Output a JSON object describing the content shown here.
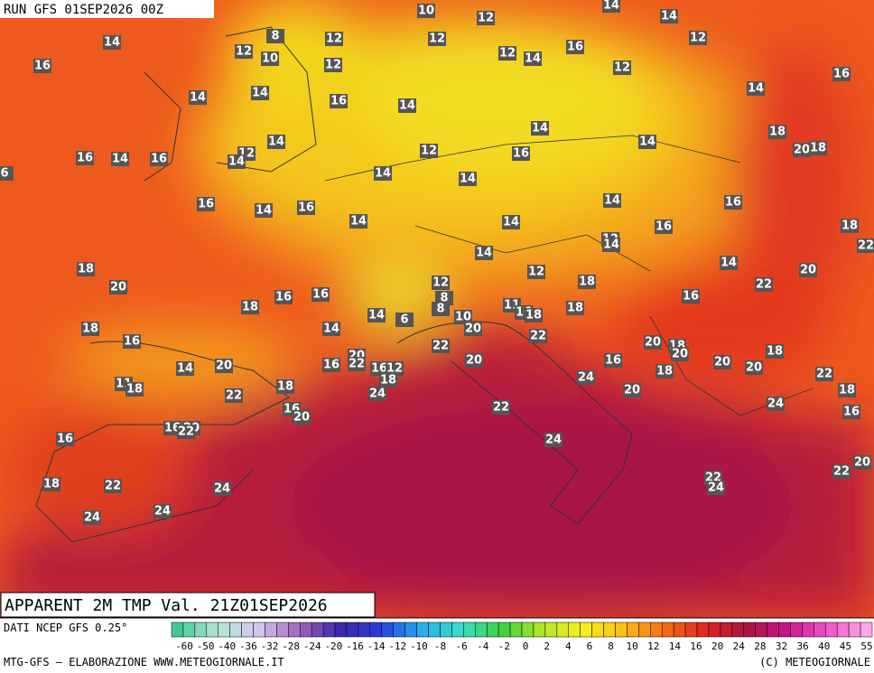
{
  "header": {
    "run": "RUN GFS 01SEP2026 00Z",
    "title": "APPARENT 2M TMP Val. 21Z01SEP2026"
  },
  "footer": {
    "source": "DATI NCEP GFS 0.25°",
    "credit": "MTG-GFS — ELABORAZIONE WWW.METEOGIORNALE.IT",
    "copyright": "(C) METEOGIORNALE"
  },
  "colorbar": {
    "labels": [
      -60,
      -50,
      -40,
      -36,
      -32,
      -28,
      -24,
      -20,
      -16,
      -14,
      -12,
      -10,
      -8,
      -6,
      -4,
      -2,
      0,
      2,
      4,
      6,
      8,
      10,
      12,
      14,
      16,
      20,
      24,
      28,
      32,
      36,
      40,
      45,
      55
    ]
  },
  "map": {
    "labels": [
      10,
      12,
      14,
      14,
      14,
      8,
      12,
      12,
      12,
      12,
      10,
      12,
      12,
      14,
      16,
      12,
      16,
      16,
      14,
      14,
      16,
      14,
      14,
      14,
      18,
      20,
      18,
      14,
      12,
      14,
      12,
      16,
      14,
      16,
      14,
      16,
      6,
      14,
      14,
      16,
      14,
      16,
      14,
      14,
      16,
      14,
      16,
      18,
      22,
      12,
      14,
      14,
      18,
      20,
      12,
      18,
      14,
      20,
      12,
      8,
      8,
      16,
      16,
      18,
      22,
      16,
      18,
      11,
      16,
      18,
      6,
      14,
      10,
      20,
      18,
      16,
      14,
      22,
      22,
      20,
      18,
      20,
      18,
      20,
      22,
      16,
      16,
      12,
      20,
      14,
      20,
      16,
      18,
      20,
      20,
      22,
      18,
      24,
      18,
      24,
      20,
      18,
      11,
      18,
      22,
      24,
      16,
      16,
      20,
      22,
      16,
      20,
      22,
      16,
      24,
      20,
      22,
      22,
      24,
      18,
      22,
      24,
      24,
      24
    ]
  }
}
